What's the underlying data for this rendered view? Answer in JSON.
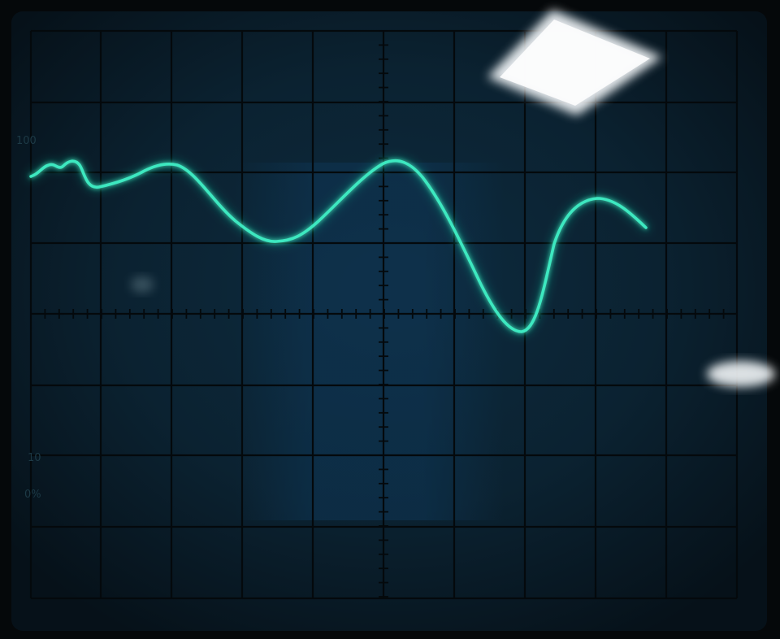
{
  "screen": {
    "graticule_labels": {
      "top_marker": "100",
      "lower_marker": "10",
      "lower_percent": "0%"
    },
    "colors": {
      "bezel": "#05080a",
      "screen_dark": "#0b1a22",
      "screen_blue": "#0d2a3e",
      "grid": "#050b0f",
      "trace": "#3ee8c0",
      "trace_glow": "#1fb996",
      "reflection": "#f4f8fa"
    }
  }
}
